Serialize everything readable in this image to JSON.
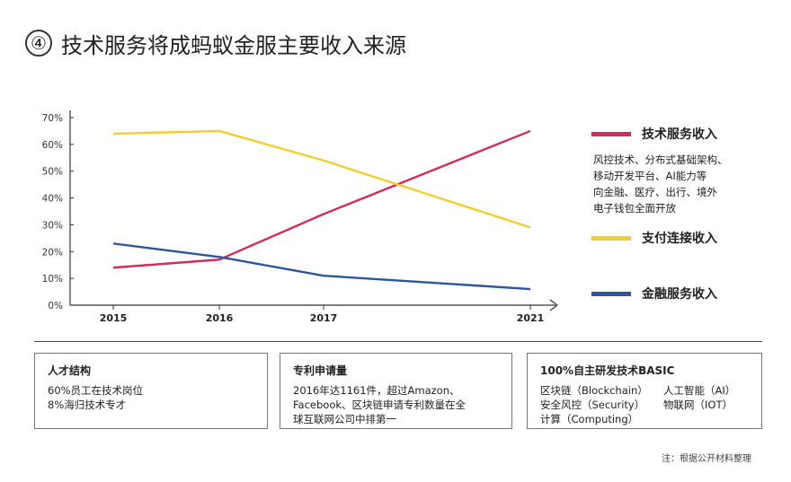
{
  "header": {
    "number": "④",
    "title": "技术服务将成蚂蚁金服主要收入来源"
  },
  "colors": {
    "tech": "#d22d5a",
    "payment": "#f3cd2b",
    "finance": "#2b559c",
    "axis": "#333333"
  },
  "chart_data": {
    "type": "line",
    "x": [
      "2015",
      "2016",
      "2017",
      "2021"
    ],
    "yticks": [
      "0%",
      "10%",
      "20%",
      "30%",
      "40%",
      "50%",
      "60%",
      "70%"
    ],
    "ylim": [
      0,
      70
    ],
    "series": [
      {
        "name": "技术服务收入",
        "values": [
          14,
          17,
          34,
          65
        ]
      },
      {
        "name": "支付连接收入",
        "values": [
          64,
          65,
          54,
          29
        ]
      },
      {
        "name": "金融服务收入",
        "values": [
          23,
          18,
          11,
          6
        ]
      }
    ]
  },
  "legend": {
    "tech": {
      "label": "技术服务收入",
      "desc": [
        "风控技术、分布式基础架构、",
        "移动开发平台、AI能力等",
        "向金融、医疗、出行、境外",
        "电子钱包全面开放"
      ]
    },
    "payment": {
      "label": "支付连接收入"
    },
    "finance": {
      "label": "金融服务收入"
    }
  },
  "boxes": {
    "talent": {
      "title": "人才结构",
      "lines": [
        "60%员工在技术岗位",
        "8%海归技术专才"
      ]
    },
    "patent": {
      "title": "专利申请量",
      "lines": [
        "2016年达1161件，超过Amazon、",
        "Facebook、区块链申请专利数量在全",
        "球互联网公司中排第一"
      ]
    },
    "basic": {
      "title": "100%自主研发技术BASIC",
      "items": [
        "区块链（Blockchain）",
        "人工智能（AI）",
        "安全风控（Security）",
        "物联网（IOT）",
        "计算（Computing）"
      ]
    }
  },
  "note": "注：根据公开材料整理"
}
